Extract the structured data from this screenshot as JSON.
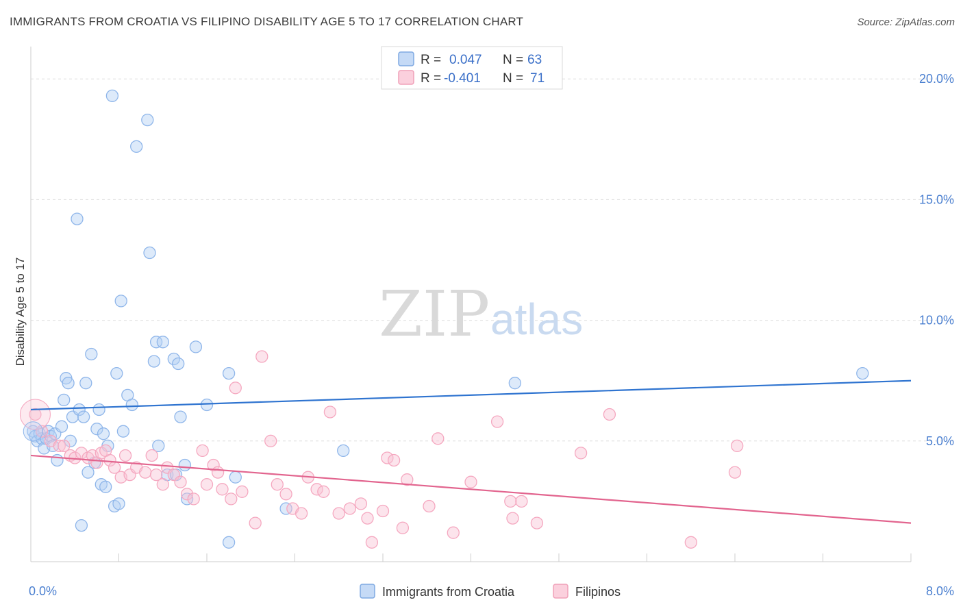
{
  "title": "IMMIGRANTS FROM CROATIA VS FILIPINO DISABILITY AGE 5 TO 17 CORRELATION CHART",
  "source": "Source: ZipAtlas.com",
  "watermark": {
    "part1": "ZIP",
    "part2": "atlas"
  },
  "legend": {
    "r_label": "R =",
    "n_label": "N =",
    "rows": [
      {
        "r": "0.047",
        "n": "63"
      },
      {
        "r": "-0.401",
        "n": "71"
      }
    ]
  },
  "chart_data": {
    "type": "scatter",
    "xlabel": "",
    "ylabel": "Disability Age 5 to 17",
    "xlim": [
      0,
      8
    ],
    "ylim": [
      0,
      21
    ],
    "x_tick_labels": [
      {
        "value": 0,
        "label": "0.0%"
      },
      {
        "value": 8,
        "label": "8.0%"
      }
    ],
    "y_tick_labels": [
      {
        "value": 5,
        "label": "5.0%"
      },
      {
        "value": 10,
        "label": "10.0%"
      },
      {
        "value": 15,
        "label": "15.0%"
      },
      {
        "value": 20,
        "label": "20.0%"
      }
    ],
    "x_minor_ticks": [
      0.8,
      1.6,
      2.4,
      3.2,
      4.0,
      4.8,
      5.6,
      6.4,
      7.2,
      8.0
    ],
    "grid": "horizontal dashed",
    "legend_position": "top-center",
    "series": [
      {
        "name": "Immigrants from Croatia",
        "color": "#8fb6ea",
        "line_color": "#2f74d0",
        "trend": {
          "x": [
            0,
            8
          ],
          "y": [
            6.3,
            7.5
          ]
        },
        "points": [
          [
            0.02,
            5.4
          ],
          [
            0.04,
            5.2
          ],
          [
            0.06,
            5.0
          ],
          [
            0.08,
            5.3
          ],
          [
            0.1,
            5.1
          ],
          [
            0.12,
            4.7
          ],
          [
            0.14,
            5.1
          ],
          [
            0.16,
            5.4
          ],
          [
            0.18,
            5.2
          ],
          [
            0.2,
            4.8
          ],
          [
            0.22,
            5.3
          ],
          [
            0.24,
            4.2
          ],
          [
            0.28,
            5.6
          ],
          [
            0.3,
            6.7
          ],
          [
            0.32,
            7.6
          ],
          [
            0.34,
            7.4
          ],
          [
            0.36,
            5.0
          ],
          [
            0.38,
            6.0
          ],
          [
            0.42,
            14.2
          ],
          [
            0.44,
            6.3
          ],
          [
            0.46,
            1.5
          ],
          [
            0.48,
            6.0
          ],
          [
            0.5,
            7.4
          ],
          [
            0.52,
            3.7
          ],
          [
            0.55,
            8.6
          ],
          [
            0.58,
            4.1
          ],
          [
            0.6,
            5.5
          ],
          [
            0.62,
            6.3
          ],
          [
            0.64,
            3.2
          ],
          [
            0.66,
            5.3
          ],
          [
            0.68,
            3.1
          ],
          [
            0.7,
            4.8
          ],
          [
            0.74,
            19.3
          ],
          [
            0.76,
            2.3
          ],
          [
            0.78,
            7.8
          ],
          [
            0.8,
            2.4
          ],
          [
            0.82,
            10.8
          ],
          [
            0.84,
            5.4
          ],
          [
            0.88,
            6.9
          ],
          [
            0.92,
            6.5
          ],
          [
            0.96,
            17.2
          ],
          [
            1.06,
            18.3
          ],
          [
            1.08,
            12.8
          ],
          [
            1.12,
            8.3
          ],
          [
            1.14,
            9.1
          ],
          [
            1.16,
            4.8
          ],
          [
            1.2,
            9.1
          ],
          [
            1.24,
            3.6
          ],
          [
            1.3,
            8.4
          ],
          [
            1.32,
            3.6
          ],
          [
            1.34,
            8.2
          ],
          [
            1.36,
            6.0
          ],
          [
            1.4,
            4.0
          ],
          [
            1.42,
            2.6
          ],
          [
            1.5,
            8.9
          ],
          [
            1.6,
            6.5
          ],
          [
            1.8,
            7.8
          ],
          [
            1.86,
            3.5
          ],
          [
            1.8,
            0.8
          ],
          [
            2.32,
            2.2
          ],
          [
            2.84,
            4.6
          ],
          [
            4.4,
            7.4
          ],
          [
            7.56,
            7.8
          ]
        ]
      },
      {
        "name": "Filipinos",
        "color": "#f5a8c0",
        "line_color": "#e2648e",
        "trend": {
          "x": [
            0,
            8
          ],
          "y": [
            4.4,
            1.6
          ]
        },
        "points": [
          [
            0.04,
            6.1
          ],
          [
            0.1,
            5.4
          ],
          [
            0.18,
            5.0
          ],
          [
            0.26,
            4.8
          ],
          [
            0.3,
            4.8
          ],
          [
            0.36,
            4.4
          ],
          [
            0.4,
            4.3
          ],
          [
            0.46,
            4.5
          ],
          [
            0.52,
            4.3
          ],
          [
            0.56,
            4.4
          ],
          [
            0.6,
            4.1
          ],
          [
            0.64,
            4.5
          ],
          [
            0.68,
            4.6
          ],
          [
            0.72,
            4.2
          ],
          [
            0.76,
            3.9
          ],
          [
            0.82,
            3.5
          ],
          [
            0.86,
            4.4
          ],
          [
            0.9,
            3.6
          ],
          [
            0.96,
            3.9
          ],
          [
            1.04,
            3.7
          ],
          [
            1.1,
            4.4
          ],
          [
            1.14,
            3.6
          ],
          [
            1.2,
            3.2
          ],
          [
            1.24,
            3.9
          ],
          [
            1.3,
            3.6
          ],
          [
            1.36,
            3.3
          ],
          [
            1.42,
            2.8
          ],
          [
            1.48,
            2.6
          ],
          [
            1.56,
            4.6
          ],
          [
            1.6,
            3.2
          ],
          [
            1.66,
            4.0
          ],
          [
            1.7,
            3.7
          ],
          [
            1.74,
            3.0
          ],
          [
            1.82,
            2.6
          ],
          [
            1.86,
            7.2
          ],
          [
            1.92,
            2.9
          ],
          [
            2.04,
            1.6
          ],
          [
            2.1,
            8.5
          ],
          [
            2.18,
            5.0
          ],
          [
            2.24,
            3.2
          ],
          [
            2.32,
            2.8
          ],
          [
            2.38,
            2.2
          ],
          [
            2.46,
            2.0
          ],
          [
            2.52,
            3.5
          ],
          [
            2.6,
            3.0
          ],
          [
            2.66,
            2.9
          ],
          [
            2.72,
            6.2
          ],
          [
            2.8,
            2.0
          ],
          [
            2.9,
            2.2
          ],
          [
            3.0,
            2.4
          ],
          [
            3.06,
            1.8
          ],
          [
            3.1,
            0.8
          ],
          [
            3.2,
            2.1
          ],
          [
            3.24,
            4.3
          ],
          [
            3.3,
            4.2
          ],
          [
            3.38,
            1.4
          ],
          [
            3.42,
            3.4
          ],
          [
            3.62,
            2.3
          ],
          [
            3.7,
            5.1
          ],
          [
            3.84,
            1.2
          ],
          [
            4.0,
            3.3
          ],
          [
            4.24,
            5.8
          ],
          [
            4.36,
            2.5
          ],
          [
            4.38,
            1.8
          ],
          [
            4.46,
            2.5
          ],
          [
            4.6,
            1.6
          ],
          [
            5.0,
            4.5
          ],
          [
            5.26,
            6.1
          ],
          [
            6.0,
            0.8
          ],
          [
            6.4,
            3.7
          ],
          [
            6.42,
            4.8
          ]
        ]
      }
    ]
  }
}
